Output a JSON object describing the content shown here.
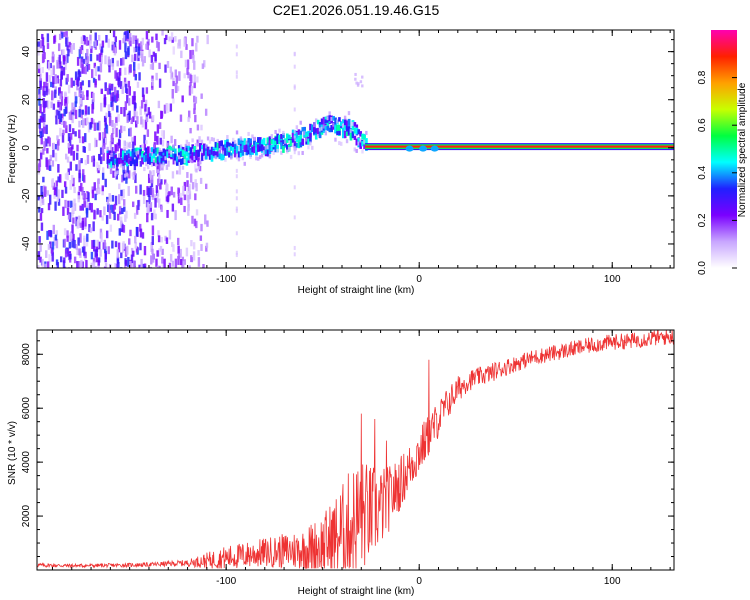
{
  "chart_data": [
    {
      "type": "heatmap",
      "title": "C2E1.2026.051.19.46.G15",
      "xlabel": "Height of straight line (km)",
      "ylabel": "Frequency (Hz)",
      "xlim": [
        -198,
        132
      ],
      "ylim": [
        -50,
        49
      ],
      "xticks": [
        -100,
        0,
        100
      ],
      "yticks": [
        -40,
        -20,
        0,
        20,
        40
      ],
      "xtick_labels": [
        "-100",
        "0",
        "100"
      ],
      "ytick_labels": [
        "-40",
        "-20",
        "0",
        "20",
        "40"
      ],
      "colorbar": {
        "label": "Normalized spectral amplitude",
        "range": [
          0,
          1
        ],
        "ticks": [
          0,
          0.2,
          0.4,
          0.6,
          0.8
        ],
        "tick_labels": [
          "0.0",
          "0.2",
          "0.4",
          "0.6",
          "0.8"
        ],
        "colors": [
          "#ffffff",
          "#c8a6ff",
          "#7a00ff",
          "#2020ff",
          "#00ffff",
          "#00ff40",
          "#c8ff00",
          "#ffa000",
          "#ff2000",
          "#ff00b0"
        ]
      },
      "features": {
        "carrier": {
          "from_height": -28,
          "to_height": 132,
          "frequency": 0.5,
          "amplitude": 0.9
        },
        "ridge": [
          {
            "height": -162,
            "frequency": -4.5
          },
          {
            "height": -140,
            "frequency": -3
          },
          {
            "height": -120,
            "frequency": -2.5
          },
          {
            "height": -100,
            "frequency": 0
          },
          {
            "height": -80,
            "frequency": 1
          },
          {
            "height": -60,
            "frequency": 5
          },
          {
            "height": -48,
            "frequency": 10
          },
          {
            "height": -35,
            "frequency": 8
          },
          {
            "height": -28,
            "frequency": 1
          }
        ],
        "noise_region": {
          "from_height": -198,
          "to_height": -120
        }
      }
    },
    {
      "type": "line",
      "xlabel": "Height of straight line (km)",
      "ylabel": "SNR (10 * v/v)",
      "xlim": [
        -198,
        132
      ],
      "ylim": [
        0,
        8900
      ],
      "xticks": [
        -100,
        0,
        100
      ],
      "yticks": [
        2000,
        4000,
        6000,
        8000
      ],
      "xtick_labels": [
        "-100",
        "0",
        "100"
      ],
      "ytick_labels": [
        "2000",
        "4000",
        "6000",
        "8000"
      ],
      "color": "#ee3333",
      "series": [
        {
          "name": "SNR",
          "x": [
            -198,
            -180,
            -160,
            -140,
            -120,
            -110,
            -100,
            -90,
            -80,
            -70,
            -60,
            -50,
            -45,
            -40,
            -35,
            -30,
            -25,
            -20,
            -15,
            -10,
            -5,
            0,
            5,
            10,
            15,
            20,
            25,
            30,
            35,
            40,
            50,
            60,
            70,
            80,
            90,
            100,
            110,
            120,
            132
          ],
          "y": [
            180,
            160,
            170,
            200,
            260,
            350,
            450,
            550,
            650,
            700,
            750,
            900,
            1100,
            1400,
            1700,
            2000,
            2100,
            2300,
            2700,
            3200,
            3800,
            4400,
            5000,
            5600,
            6200,
            6700,
            7000,
            7150,
            7250,
            7400,
            7650,
            7900,
            8050,
            8200,
            8350,
            8450,
            8500,
            8600,
            8650
          ],
          "spread": [
            80,
            70,
            70,
            80,
            120,
            300,
            450,
            500,
            550,
            650,
            800,
            1200,
            1500,
            1800,
            2200,
            2200,
            1800,
            1500,
            1200,
            1000,
            900,
            900,
            800,
            700,
            600,
            500,
            400,
            350,
            350,
            350,
            300,
            300,
            300,
            300,
            300,
            300,
            300,
            300,
            300
          ],
          "spikes": [
            {
              "x": -30,
              "y": 5800
            },
            {
              "x": -23,
              "y": 5600
            },
            {
              "x": 5,
              "y": 7800
            },
            {
              "x": -17,
              "y": 4800
            }
          ]
        }
      ]
    }
  ]
}
